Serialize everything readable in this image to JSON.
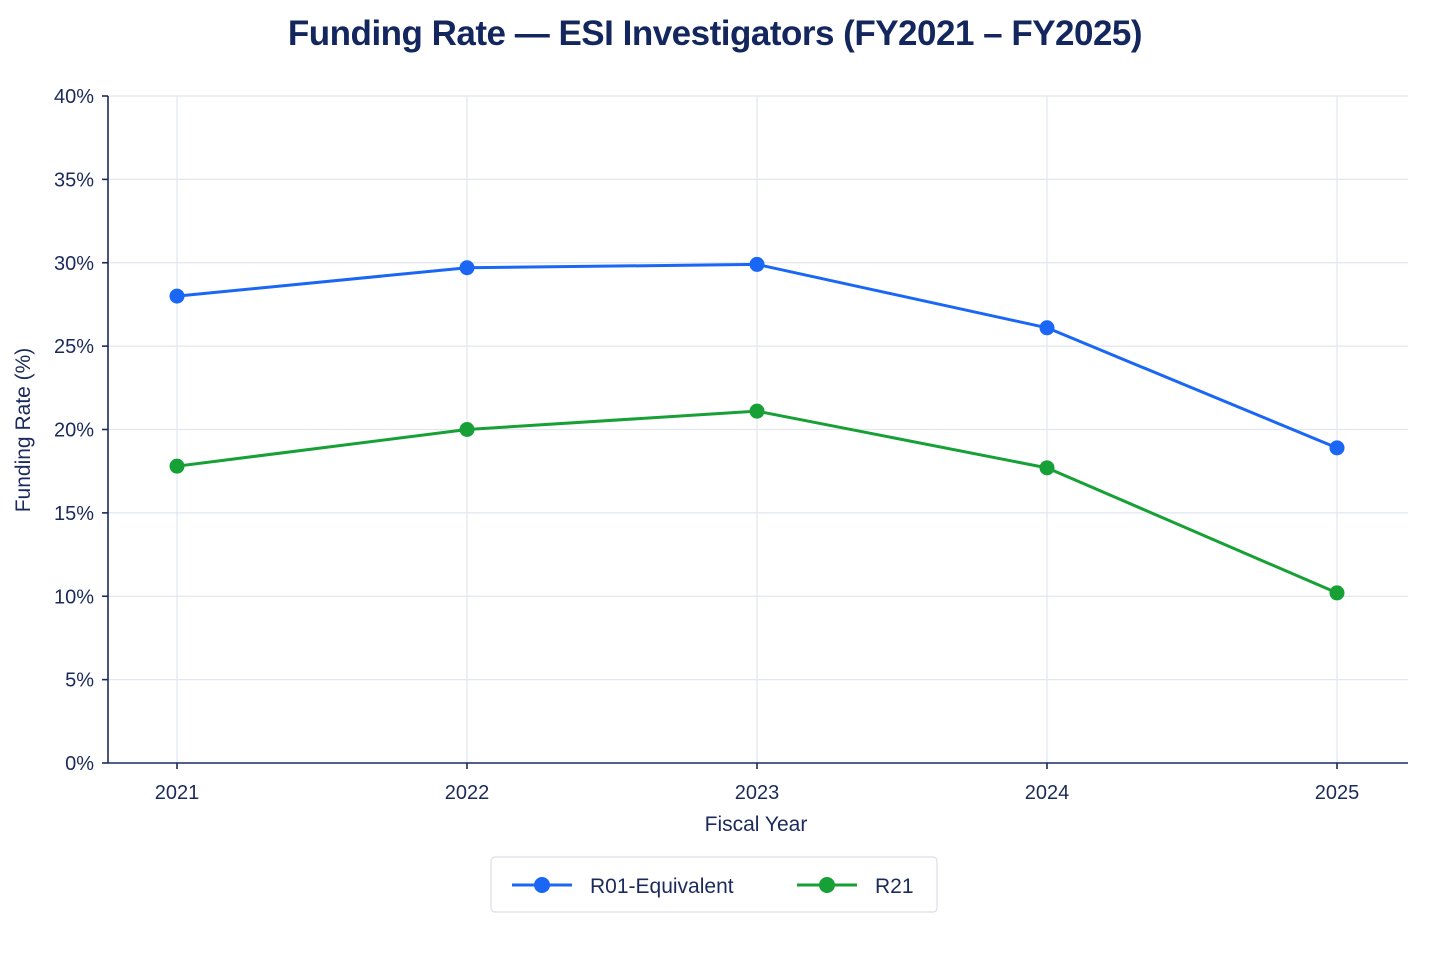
{
  "chart_data": {
    "type": "line",
    "title": "Funding Rate — ESI Investigators (FY2021 – FY2025)",
    "xlabel": "Fiscal Year",
    "ylabel": "Funding Rate (%)",
    "categories": [
      "2021",
      "2022",
      "2023",
      "2024",
      "2025"
    ],
    "ylim": [
      0,
      40
    ],
    "yticks": [
      0,
      5,
      10,
      15,
      20,
      25,
      30,
      35,
      40
    ],
    "ytick_labels": [
      "0%",
      "5%",
      "10%",
      "15%",
      "20%",
      "25%",
      "30%",
      "35%",
      "40%"
    ],
    "grid": true,
    "legend_position": "bottom-center",
    "series": [
      {
        "name": "R01-Equivalent",
        "color": "#1a66f5",
        "values": [
          28.0,
          29.7,
          29.9,
          26.1,
          18.9
        ]
      },
      {
        "name": "R21",
        "color": "#16a035",
        "values": [
          17.8,
          20.0,
          21.1,
          17.7,
          10.2
        ]
      }
    ]
  }
}
